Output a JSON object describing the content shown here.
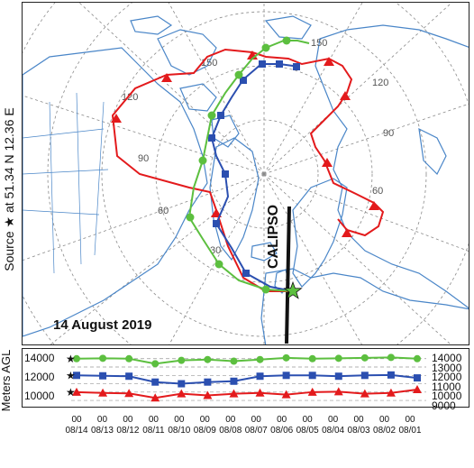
{
  "source_label": "Source ★ at 51.34 N  12.36 E",
  "date_label": "14 August 2019",
  "instrument_label": "CALIPSO",
  "meridian_labels": [
    "150",
    "120",
    "90",
    "60",
    "30",
    "90",
    "60",
    "120",
    "150",
    "30"
  ],
  "colors": {
    "red": "#e31a1c",
    "blue": "#2b4fb0",
    "green": "#5cbf3f",
    "land": "#4a86c8",
    "grid": "#8a8a8a"
  },
  "chart_data": {
    "type": "line",
    "ylabel": "Meters AGL",
    "left_ticks": [
      "14000",
      "12000",
      "10000"
    ],
    "right_ticks": [
      "14000",
      "13000",
      "12000",
      "11000",
      "10000",
      "9000"
    ],
    "x_tick_top": [
      "00",
      "00",
      "00",
      "00",
      "00",
      "00",
      "00",
      "00",
      "00",
      "00",
      "00",
      "00",
      "00",
      "00"
    ],
    "x_tick_bottom": [
      "08/14",
      "08/13",
      "08/12",
      "08/11",
      "08/10",
      "08/09",
      "08/08",
      "08/07",
      "08/06",
      "08/05",
      "08/04",
      "08/03",
      "08/02",
      "08/01"
    ],
    "series": [
      {
        "color": "green",
        "start": 14000,
        "values": [
          14000,
          14050,
          14000,
          13400,
          13800,
          13900,
          13700,
          13900,
          14100,
          14000,
          14050,
          14100,
          14150,
          14000
        ]
      },
      {
        "color": "blue",
        "start": 12000,
        "values": [
          12000,
          11950,
          11900,
          11200,
          11000,
          11200,
          11300,
          11900,
          12000,
          12000,
          11900,
          12000,
          12050,
          11700
        ]
      },
      {
        "color": "red",
        "start": 10000,
        "values": [
          10000,
          9900,
          9850,
          9300,
          9800,
          9600,
          9800,
          9900,
          9700,
          10000,
          10050,
          9800,
          9900,
          10300
        ]
      }
    ]
  }
}
